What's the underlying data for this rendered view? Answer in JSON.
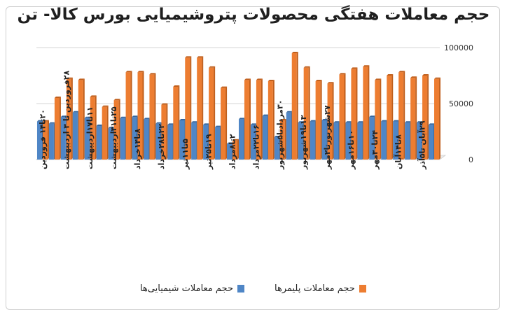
{
  "chart_data": {
    "type": "bar",
    "title": "حجم معاملات هفتگی محصولات پتروشیمیایی بورس کالا- تن",
    "xlabel": "",
    "ylabel": "",
    "ylim": [
      0,
      100000
    ],
    "y_ticks": [
      "0",
      "50000",
      "100000"
    ],
    "grid": true,
    "legend_position": "bottom",
    "colors": {
      "chemicals": "#4f86c6",
      "polymers": "#ed7d31"
    },
    "categories": [
      "۲۰تا۱۴ فروردین",
      "",
      "۲۸فروردین تا ۳ اردیبهشت",
      "",
      "۱۱تا۱۷اردیبهشت",
      "",
      "۲۵تا۳۱اردیبهشت",
      "",
      "۸تا۱۴خرداد",
      "",
      "۲۲تا۲۸خرداد",
      "",
      "۵تا۱۱تیر",
      "",
      "۱۹تا۲۵تیر",
      "",
      "۲تا۸مرداد",
      "",
      "۱۶تا۲۲مرداد",
      "",
      "۳۰مردادتا۵شهریور",
      "",
      "۱۳تا۱۹شهریور",
      "",
      "۲۷شهریورتا۲مهر",
      "",
      "۱۰تا۱۶مهر",
      "",
      "۲۴تا۳۰مهر",
      "",
      "۸تا۱۴آبان",
      "",
      "۲۹آبان تا۵آذر",
      ""
    ],
    "series": [
      {
        "name": "حجم معاملات پلیمرها",
        "values": [
          34000,
          55000,
          72000,
          71000,
          56000,
          47000,
          53000,
          78000,
          78000,
          76000,
          49000,
          65000,
          91000,
          91000,
          82000,
          64000,
          17000,
          71000,
          71000,
          70000,
          35000,
          95000,
          82000,
          70000,
          68000,
          76000,
          81000,
          83000,
          71000,
          75000,
          78000,
          73000,
          75000,
          72000
        ]
      },
      {
        "name": "حجم معاملات شیمیایی‌ها",
        "values": [
          34000,
          32000,
          38000,
          42000,
          37000,
          30000,
          28000,
          37000,
          38000,
          36000,
          32000,
          31000,
          35000,
          33000,
          31000,
          29000,
          14000,
          36000,
          31000,
          39000,
          20000,
          42000,
          33000,
          34000,
          35000,
          33000,
          33000,
          33000,
          38000,
          34000,
          34000,
          33000,
          33000,
          31000
        ]
      }
    ]
  }
}
